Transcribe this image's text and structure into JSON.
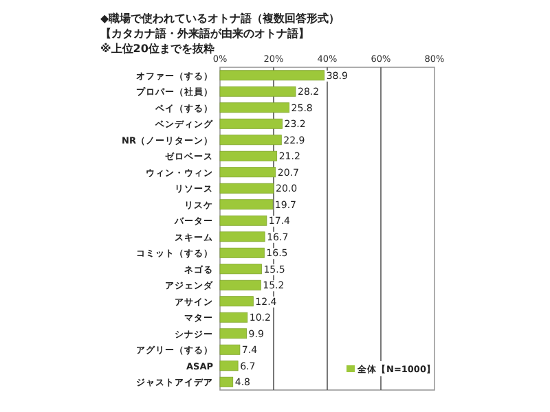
{
  "chart_data": {
    "type": "bar",
    "orientation": "horizontal",
    "title": "◆職場で使われているオトナ語（複数回答形式）",
    "subtitle": "【カタカナ語・外来語が由来のオトナ語】",
    "annotations": [
      "※上位20位までを抜粋"
    ],
    "categories": [
      "オファー（する）",
      "プロパー（社員）",
      "ペイ（する）",
      "ベンディング",
      "NR（ノーリターン）",
      "ゼロベース",
      "ウィン・ウィン",
      "リソース",
      "リスケ",
      "バーター",
      "スキーム",
      "コミット（する）",
      "ネゴる",
      "アジェンダ",
      "アサイン",
      "マター",
      "シナジー",
      "アグリー（する）",
      "ASAP",
      "ジャストアイデア"
    ],
    "series": [
      {
        "name": "全体【N=1000】",
        "color": "#9dc83a",
        "values": [
          38.9,
          28.2,
          25.8,
          23.2,
          22.9,
          21.2,
          20.7,
          20.0,
          19.7,
          17.4,
          16.7,
          16.5,
          15.5,
          15.2,
          12.4,
          10.2,
          9.9,
          7.4,
          6.7,
          4.8
        ],
        "value_labels": [
          "38.9",
          "28.2",
          "25.8",
          "23.2",
          "22.9",
          "21.2",
          "20.7",
          "20.0",
          "19.7",
          "17.4",
          "16.7",
          "16.5",
          "15.5",
          "15.2",
          "12.4",
          "10.2",
          "9.9",
          "7.4",
          "6.7",
          "4.8"
        ]
      }
    ],
    "xlim": [
      0,
      80
    ],
    "xticks": [
      {
        "value": 0,
        "label": "0%"
      },
      {
        "value": 20,
        "label": "20%"
      },
      {
        "value": 40,
        "label": "40%"
      },
      {
        "value": 60,
        "label": "60%"
      },
      {
        "value": 80,
        "label": "80%"
      }
    ],
    "grid": "x",
    "legend": "bottom right"
  }
}
